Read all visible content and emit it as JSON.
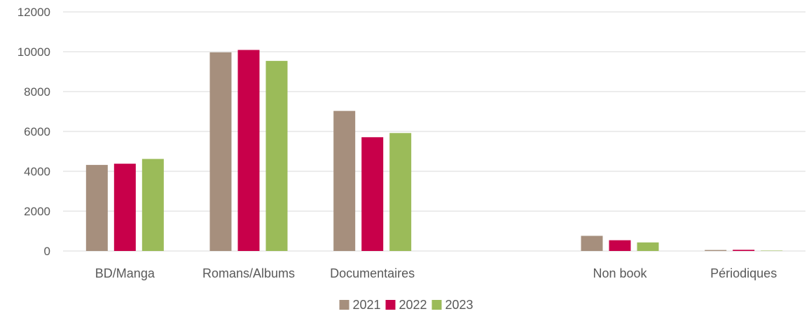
{
  "chart_data": {
    "type": "bar",
    "title": "",
    "xlabel": "",
    "ylabel": "",
    "ylim": [
      0,
      12000
    ],
    "yticks": [
      0,
      2000,
      4000,
      6000,
      8000,
      10000,
      12000
    ],
    "grid": true,
    "legend_position": "bottom",
    "categories": [
      "BD/Manga",
      "Romans/Albums",
      "Documentaires",
      "",
      "Non book",
      "Périodiques"
    ],
    "series": [
      {
        "name": "2021",
        "color": "#a68f7d",
        "values": [
          4320,
          9970,
          7030,
          0,
          760,
          50
        ]
      },
      {
        "name": "2022",
        "color": "#c8004a",
        "values": [
          4380,
          10090,
          5710,
          0,
          540,
          60
        ]
      },
      {
        "name": "2023",
        "color": "#9bbb59",
        "values": [
          4620,
          9540,
          5920,
          0,
          430,
          20
        ]
      }
    ]
  }
}
